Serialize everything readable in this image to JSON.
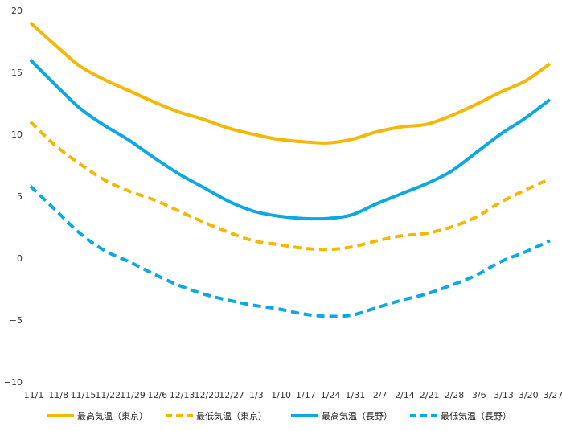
{
  "chart_data": {
    "type": "line",
    "title": "",
    "xlabel": "",
    "ylabel": "",
    "ylim": [
      -10,
      20
    ],
    "yticks": [
      20,
      15,
      10,
      5,
      0,
      -5,
      -10
    ],
    "ytick_labels": [
      "20",
      "15",
      "10",
      "5",
      "0",
      "−5",
      "−10"
    ],
    "x_tick_labels": [
      "11/1",
      "11/8",
      "11/15",
      "11/22",
      "11/29",
      "12/6",
      "12/13",
      "12/20",
      "12/27",
      "1/3",
      "1/10",
      "1/17",
      "1/24",
      "1/31",
      "2/7",
      "2/14",
      "2/21",
      "2/28",
      "3/6",
      "3/13",
      "3/20",
      "3/27"
    ],
    "legend_position": "bottom",
    "grid": false,
    "series": [
      {
        "name": "最高気温（東京）",
        "color": "#F5B800",
        "dashed": false,
        "values": [
          19.0,
          17.2,
          15.5,
          14.4,
          13.5,
          12.6,
          11.8,
          11.2,
          10.5,
          10.0,
          9.6,
          9.4,
          9.3,
          9.6,
          10.2,
          10.6,
          10.8,
          11.5,
          12.4,
          13.4,
          14.3,
          15.7
        ]
      },
      {
        "name": "最低気温（東京）",
        "color": "#F5B800",
        "dashed": true,
        "values": [
          11.0,
          9.1,
          7.6,
          6.3,
          5.4,
          4.7,
          3.8,
          2.9,
          2.1,
          1.4,
          1.1,
          0.8,
          0.7,
          0.9,
          1.4,
          1.8,
          2.0,
          2.5,
          3.3,
          4.5,
          5.5,
          6.4
        ]
      },
      {
        "name": "最高気温（長野）",
        "color": "#0BA8E6",
        "dashed": false,
        "values": [
          16.0,
          14.0,
          12.1,
          10.7,
          9.5,
          8.1,
          6.8,
          5.7,
          4.6,
          3.8,
          3.4,
          3.2,
          3.2,
          3.5,
          4.4,
          5.2,
          6.0,
          7.0,
          8.5,
          10.0,
          11.3,
          12.8
        ]
      },
      {
        "name": "最低気温（長野）",
        "color": "#0BA8E6",
        "dashed": true,
        "values": [
          5.8,
          3.9,
          2.0,
          0.6,
          -0.3,
          -1.3,
          -2.2,
          -2.9,
          -3.4,
          -3.8,
          -4.1,
          -4.5,
          -4.7,
          -4.6,
          -4.0,
          -3.4,
          -2.9,
          -2.2,
          -1.4,
          -0.3,
          0.5,
          1.4
        ]
      }
    ]
  }
}
